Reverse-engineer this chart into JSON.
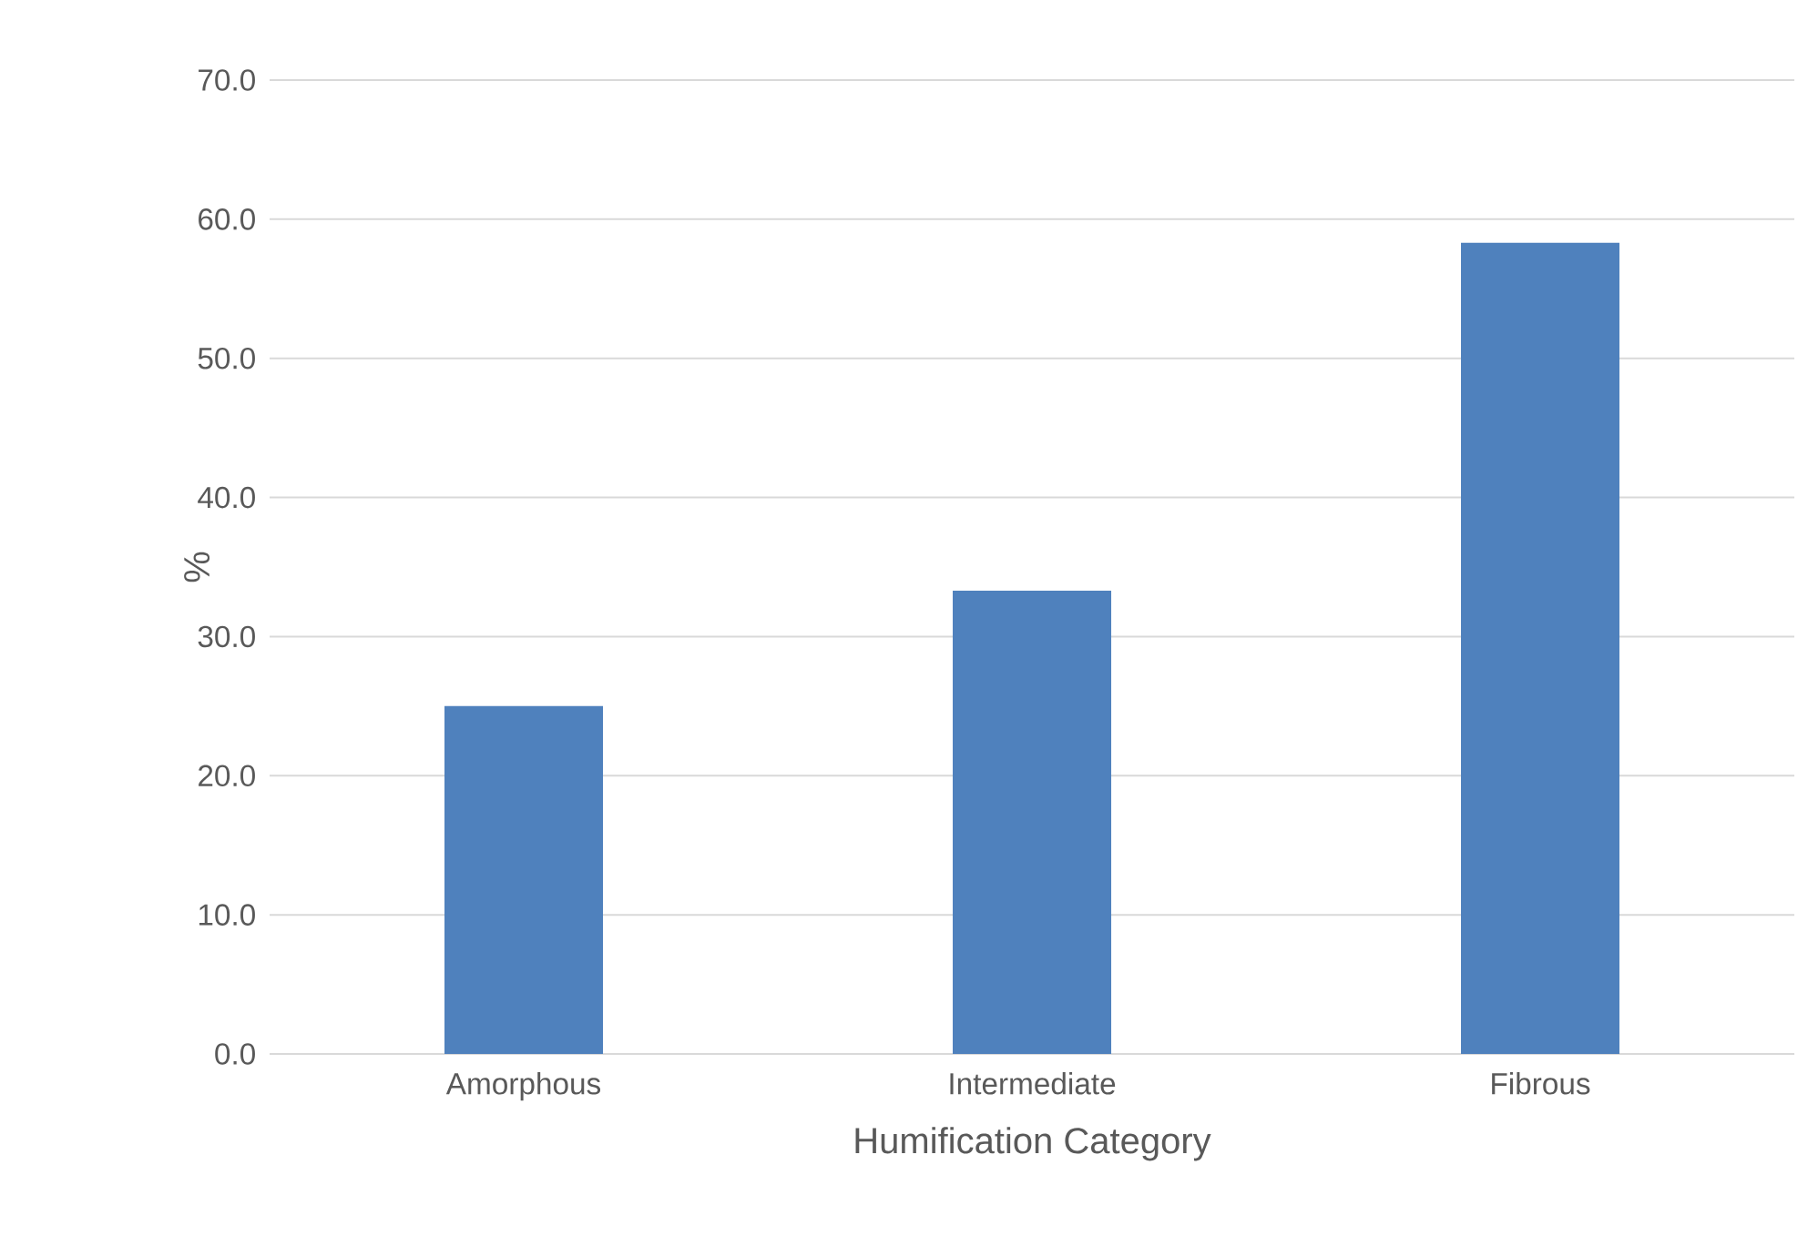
{
  "chart_data": {
    "type": "bar",
    "xlabel": "Humification Category",
    "ylabel": "%",
    "categories": [
      "Amorphous",
      "Intermediate",
      "Fibrous"
    ],
    "values": [
      25.0,
      33.3,
      58.3
    ],
    "color": "#4f81bd",
    "ylim": [
      0,
      70
    ],
    "yticks": [
      {
        "value": 0,
        "label": "0.0"
      },
      {
        "value": 10,
        "label": "10.0"
      },
      {
        "value": 20,
        "label": "20.0"
      },
      {
        "value": 30,
        "label": "30.0"
      },
      {
        "value": 40,
        "label": "40.0"
      },
      {
        "value": 50,
        "label": "50.0"
      },
      {
        "value": 60,
        "label": "60.0"
      },
      {
        "value": 70,
        "label": "70.0"
      }
    ],
    "grid": "y"
  }
}
